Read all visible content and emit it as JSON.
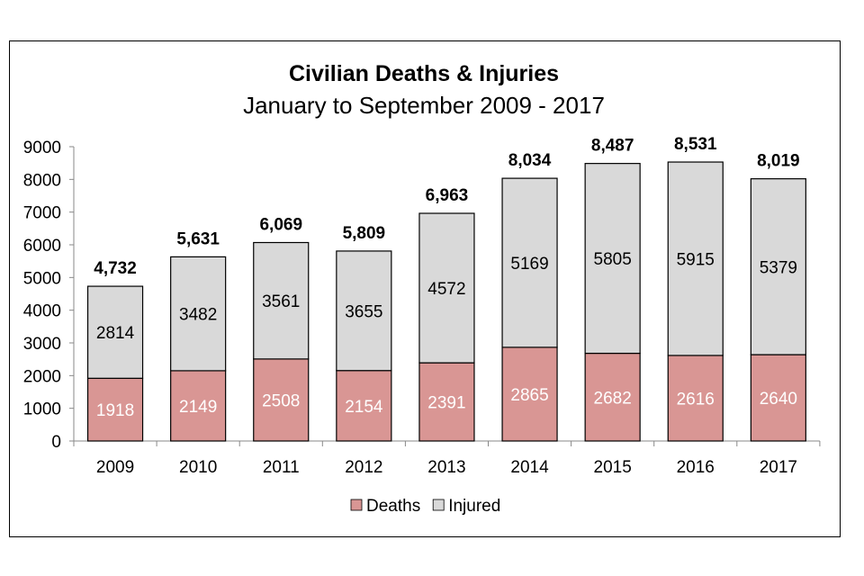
{
  "chart_data": {
    "type": "bar",
    "stacked": true,
    "title": "Civilian Deaths & Injuries",
    "subtitle": "January to September 2009 - 2017",
    "xlabel": "",
    "ylabel": "",
    "ylim": [
      0,
      9000
    ],
    "yticks": [
      0,
      1000,
      2000,
      3000,
      4000,
      5000,
      6000,
      7000,
      8000,
      9000
    ],
    "grid": false,
    "legend_position": "bottom",
    "categories": [
      "2009",
      "2010",
      "2011",
      "2012",
      "2013",
      "2014",
      "2015",
      "2016",
      "2017"
    ],
    "series": [
      {
        "name": "Deaths",
        "color": "#d99694",
        "values": [
          1918,
          2149,
          2508,
          2154,
          2391,
          2865,
          2682,
          2616,
          2640
        ]
      },
      {
        "name": "Injured",
        "color": "#d9d9d9",
        "values": [
          2814,
          3482,
          3561,
          3655,
          4572,
          5169,
          5805,
          5915,
          5379
        ]
      }
    ],
    "totals": [
      "4,732",
      "5,631",
      "6,069",
      "5,809",
      "6,963",
      "8,034",
      "8,487",
      "8,531",
      "8,019"
    ]
  }
}
